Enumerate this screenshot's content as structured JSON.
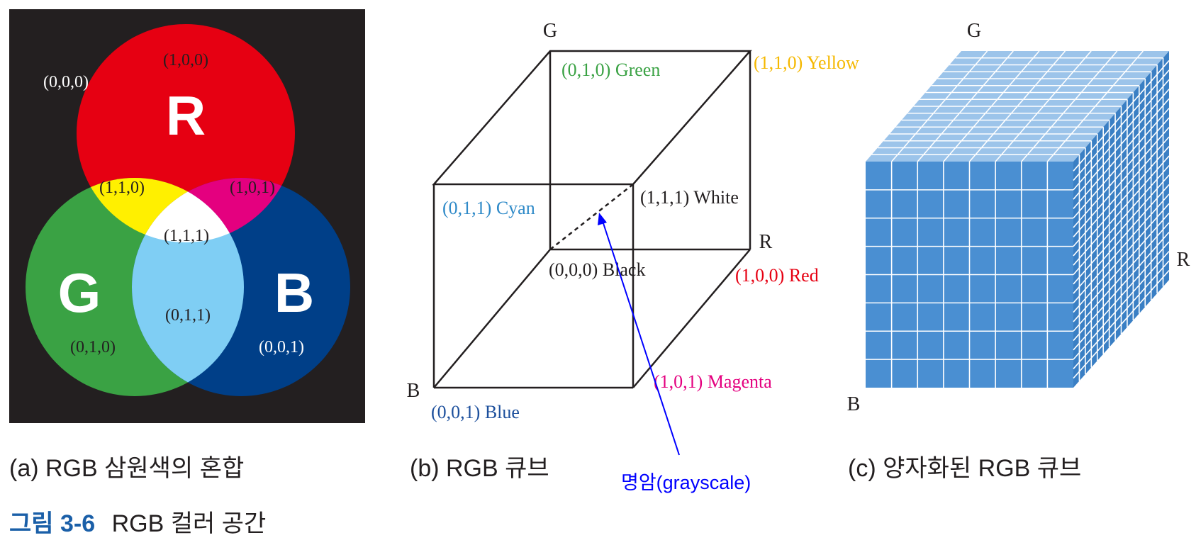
{
  "panel_a": {
    "caption": "(a) RGB 삼원색의 혼합",
    "label_r": "R",
    "label_g": "G",
    "label_b": "B",
    "black": "(0,0,0)",
    "red": "(1,0,0)",
    "yellow": "(1,1,0)",
    "magenta": "(1,0,1)",
    "white": "(1,1,1)",
    "cyan": "(0,1,1)",
    "green": "(0,1,0)",
    "blue": "(0,0,1)",
    "colors": {
      "background": "#231f20",
      "red": "#e60012",
      "green": "#3aa244",
      "blue": "#003f88",
      "yellow": "#fff000",
      "magenta": "#e4007f",
      "cyan": "#7fcef4",
      "white": "#ffffff"
    }
  },
  "panel_b": {
    "caption": "(b) RGB 큐브",
    "axis_g": "G",
    "axis_r": "R",
    "axis_b": "B",
    "green": "(0,1,0) Green",
    "yellow": "(1,1,0) Yellow",
    "cyan": "(0,1,1) Cyan",
    "white": "(1,1,1) White",
    "black": "(0,0,0) Black",
    "red": "(1,0,0) Red",
    "magenta": "(1,0,1) Magenta",
    "blue": "(0,0,1) Blue",
    "grayscale_note": "명암(grayscale)",
    "colors": {
      "green": "#3aa244",
      "yellow": "#f5b800",
      "cyan": "#2f8ac8",
      "red": "#e60012",
      "magenta": "#e4007f",
      "blue": "#1c4f9c",
      "annotation": "#0000ff"
    }
  },
  "panel_c": {
    "caption": "(c) 양자화된 RGB 큐브",
    "axis_g": "G",
    "axis_r": "R",
    "axis_b": "B",
    "colors": {
      "front": "#4a8fd2",
      "side": "#3a7fc4",
      "top": "#9cc4ea",
      "grid": "#ffffff"
    }
  },
  "figure": {
    "number": "그림 3-6",
    "title": "RGB 컬러 공간",
    "number_color": "#1a5fa8"
  }
}
